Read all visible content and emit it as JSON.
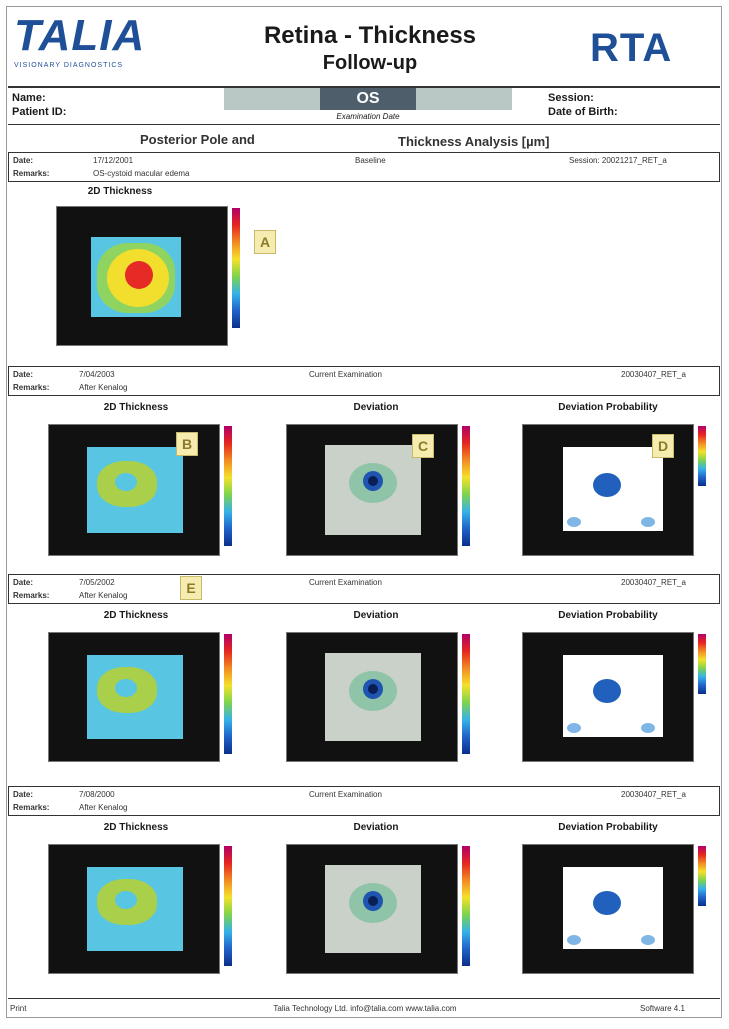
{
  "header": {
    "logo_text": "TALIA",
    "logo_sub": "VISIONARY DIAGNOSTICS",
    "title_line1": "Retina - Thickness",
    "title_line2": "Follow-up",
    "brand_right": "RTA"
  },
  "patient": {
    "name_label": "Name:",
    "patient_id_label": "Patient ID:",
    "eye": "OS",
    "exam_date_label": "Examination Date",
    "session_label": "Session:",
    "dob_label": "Date of Birth:"
  },
  "analysis_heading_left": "Posterior Pole and",
  "analysis_heading_right": "Thickness Analysis [µm]",
  "baseline": {
    "date_label": "Date:",
    "date": "17/12/2001",
    "remarks_label": "Remarks:",
    "remarks": "OS-cystoid macular edema",
    "type": "Baseline",
    "session": "Session: 20021217_RET_a",
    "map_title": "2D Thickness",
    "x_ticks": [
      "600",
      "400",
      "200",
      "0",
      "200",
      "400",
      "600"
    ],
    "y_ticks": [
      "400",
      "200",
      "0",
      "200",
      "400"
    ],
    "letter": "A"
  },
  "exams": [
    {
      "date_label": "Date:",
      "date": "7/04/2003",
      "remarks_label": "Remarks:",
      "remarks": "After Kenalog",
      "type": "Current Examination",
      "session": "20030407_RET_a",
      "titles": [
        "2D Thickness",
        "Deviation",
        "Deviation Probability"
      ],
      "letters": [
        "B",
        "C",
        "D"
      ]
    },
    {
      "date_label": "Date:",
      "date": "7/05/2002",
      "remarks_label": "Remarks:",
      "remarks": "After Kenalog",
      "type": "Current Examination",
      "session": "20030407_RET_a",
      "titles": [
        "2D Thickness",
        "Deviation",
        "Deviation Probability"
      ],
      "letters": [
        "E"
      ]
    },
    {
      "date_label": "Date:",
      "date": "7/08/2000",
      "remarks_label": "Remarks:",
      "remarks": "After Kenalog",
      "type": "Current Examination",
      "session": "20030407_RET_a",
      "titles": [
        "2D Thickness",
        "Deviation",
        "Deviation Probability"
      ],
      "letters": []
    }
  ],
  "footer": {
    "center": "Talia Technology Ltd. info@talia.com  www.talia.com",
    "right": "Software 4.1",
    "left": "Print"
  },
  "colors": {
    "brand_blue": "#1f4f97"
  }
}
